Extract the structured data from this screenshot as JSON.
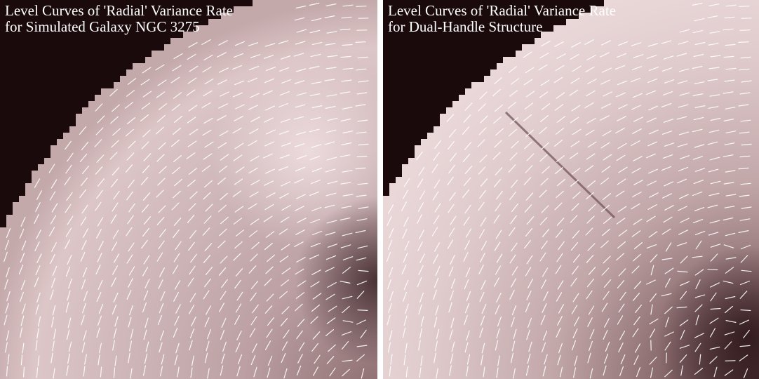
{
  "panels": [
    {
      "title_line1": "Level Curves of 'Radial' Variance Rate",
      "title_line2": "for Simulated Galaxy NGC 3275"
    },
    {
      "title_line1": "Level Curves of 'Radial' Variance Rate",
      "title_line2": "for Dual-Handle Structure"
    }
  ],
  "colors": {
    "background_dark": "#1a0a0c",
    "field_light": "#e2cccd",
    "field_mid": "#b69a9c",
    "field_dark": "#4e3336",
    "tick_marks": "#ffffff",
    "caption_text": "#ffffff"
  }
}
